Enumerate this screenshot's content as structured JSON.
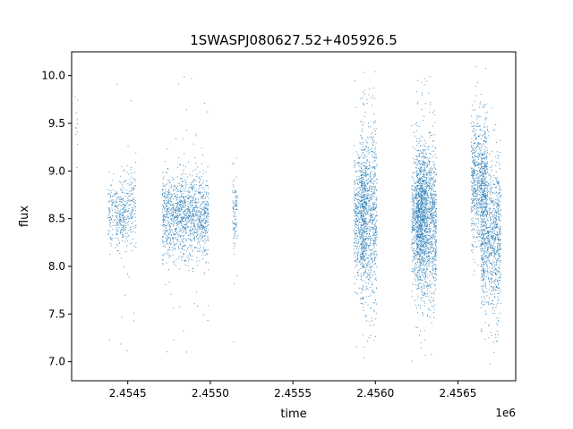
{
  "chart_data": {
    "type": "scatter",
    "title": "1SWASPJ080627.52+405926.5",
    "xlabel": "time",
    "ylabel": "flux",
    "x_offset_label": "1e6",
    "x_scale": 1000000,
    "xlim": [
      2.45416,
      2.45685
    ],
    "ylim": [
      6.8,
      10.25
    ],
    "xticks": [
      2.4545,
      2.455,
      2.4555,
      2.456,
      2.4565
    ],
    "xtick_labels": [
      "2.4545",
      "2.4550",
      "2.4555",
      "2.4560",
      "2.4565"
    ],
    "yticks": [
      7.0,
      7.5,
      8.0,
      8.5,
      9.0,
      9.5,
      10.0
    ],
    "ytick_labels": [
      "7.0",
      "7.5",
      "8.0",
      "8.5",
      "9.0",
      "9.5",
      "10.0"
    ],
    "grid": false,
    "marker_color": "#1f77b4",
    "series": [
      {
        "clusters": [
          {
            "x_center": 2.45419,
            "x_width": 2e-05,
            "y_mean": 9.7,
            "y_sd": 0.25,
            "n": 12
          },
          {
            "x_center": 2.45441,
            "x_width": 6e-05,
            "y_mean": 8.55,
            "y_sd": 0.18,
            "n": 120
          },
          {
            "x_center": 2.45446,
            "x_width": 6e-05,
            "y_mean": 8.5,
            "y_sd": 0.15,
            "n": 100
          },
          {
            "x_center": 2.4545,
            "x_width": 0.0001,
            "y_mean": 8.6,
            "y_sd": 0.2,
            "n": 220
          },
          {
            "x_center": 2.45485,
            "x_width": 0.00028,
            "y_mean": 8.55,
            "y_sd": 0.22,
            "n": 1300
          },
          {
            "x_center": 2.45515,
            "x_width": 3e-05,
            "y_mean": 8.55,
            "y_sd": 0.2,
            "n": 100
          },
          {
            "x_center": 2.45591,
            "x_width": 8e-05,
            "y_mean": 8.5,
            "y_sd": 0.35,
            "n": 550
          },
          {
            "x_center": 2.45596,
            "x_width": 0.0001,
            "y_mean": 8.55,
            "y_sd": 0.45,
            "n": 800
          },
          {
            "x_center": 2.45626,
            "x_width": 8e-05,
            "y_mean": 8.5,
            "y_sd": 0.35,
            "n": 650
          },
          {
            "x_center": 2.45631,
            "x_width": 0.00012,
            "y_mean": 8.5,
            "y_sd": 0.4,
            "n": 1300
          },
          {
            "x_center": 2.45663,
            "x_width": 0.0001,
            "y_mean": 8.9,
            "y_sd": 0.35,
            "n": 750
          },
          {
            "x_center": 2.4567,
            "x_width": 0.00012,
            "y_mean": 8.3,
            "y_sd": 0.38,
            "n": 950
          }
        ]
      }
    ]
  }
}
